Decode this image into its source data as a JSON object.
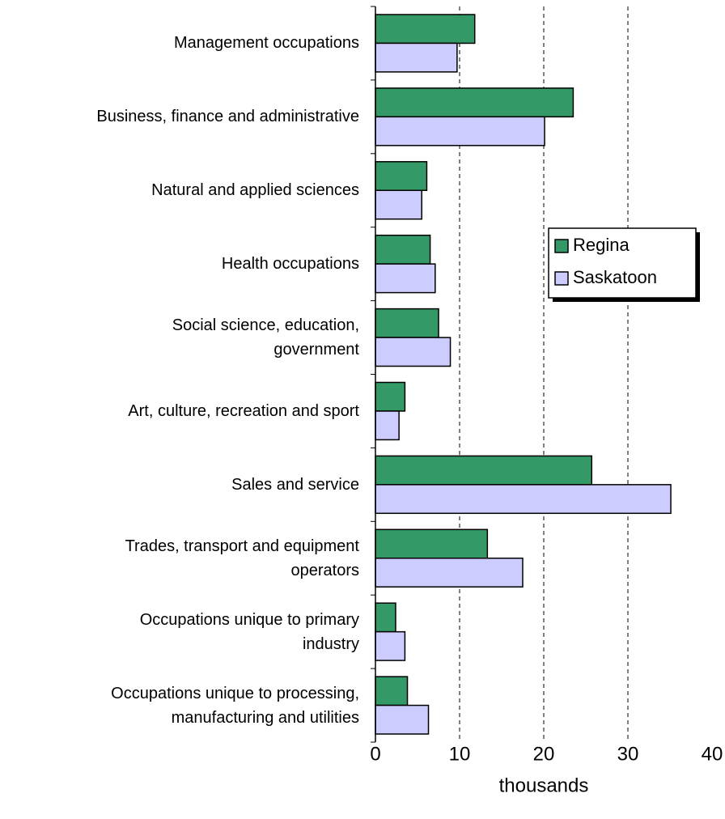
{
  "chart_data": {
    "type": "barh",
    "categories": [
      "Management occupations",
      "Business, finance and administrative",
      "Natural and applied sciences",
      "Health occupations",
      "Social science, education,\ngovernment",
      "Art, culture, recreation and sport",
      "Sales and service",
      "Trades, transport and equipment\noperators",
      "Occupations unique to primary\nindustry",
      "Occupations unique to processing,\nmanufacturing and utilities"
    ],
    "series": [
      {
        "name": "Regina",
        "color": "#339966",
        "values": [
          11.8,
          23.5,
          6.1,
          6.5,
          7.5,
          3.5,
          25.7,
          13.3,
          2.4,
          3.8
        ]
      },
      {
        "name": "Saskatoon",
        "color": "#ccccff",
        "values": [
          9.7,
          20.1,
          5.5,
          7.1,
          8.9,
          2.8,
          35.1,
          17.5,
          3.5,
          6.3
        ]
      }
    ],
    "xlim": [
      0,
      40
    ],
    "xticks": [
      0,
      10,
      20,
      30,
      40
    ],
    "xlabel": "thousands",
    "grid": true,
    "legend": "right"
  }
}
